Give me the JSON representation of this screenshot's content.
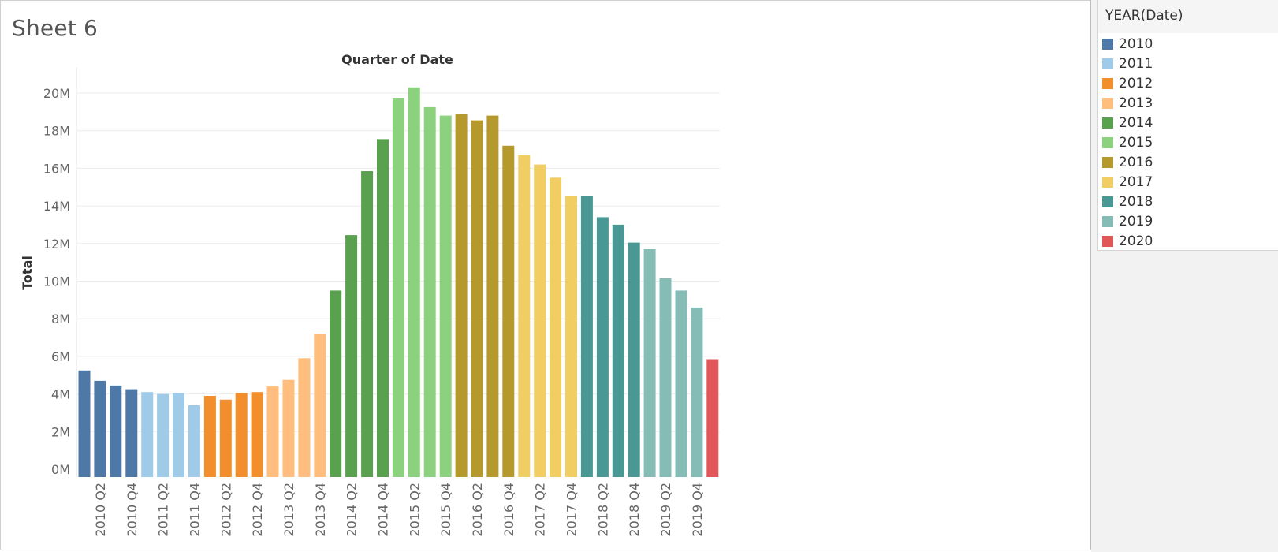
{
  "sheet": {
    "title": "Sheet 6"
  },
  "legend": {
    "title": "YEAR(Date)",
    "items": [
      {
        "label": "2010",
        "color": "#4e79a7"
      },
      {
        "label": "2011",
        "color": "#a0cbe8"
      },
      {
        "label": "2012",
        "color": "#f28e2b"
      },
      {
        "label": "2013",
        "color": "#ffbe7d"
      },
      {
        "label": "2014",
        "color": "#59a14f"
      },
      {
        "label": "2015",
        "color": "#8cd17d"
      },
      {
        "label": "2016",
        "color": "#b6992d"
      },
      {
        "label": "2017",
        "color": "#f1ce63"
      },
      {
        "label": "2018",
        "color": "#499894"
      },
      {
        "label": "2019",
        "color": "#86bcb6"
      },
      {
        "label": "2020",
        "color": "#e15759"
      }
    ]
  },
  "chart_data": {
    "type": "bar",
    "title": "Quarter of Date",
    "xlabel": "",
    "ylabel": "Total",
    "ylim": [
      0,
      20000000
    ],
    "y_ticks": [
      "0M",
      "2M",
      "4M",
      "6M",
      "8M",
      "10M",
      "12M",
      "14M",
      "16M",
      "18M",
      "20M"
    ],
    "grid": true,
    "legend_position": "right",
    "categories": [
      "2010 Q1",
      "2010 Q2",
      "2010 Q3",
      "2010 Q4",
      "2011 Q1",
      "2011 Q2",
      "2011 Q3",
      "2011 Q4",
      "2012 Q1",
      "2012 Q2",
      "2012 Q3",
      "2012 Q4",
      "2013 Q1",
      "2013 Q2",
      "2013 Q3",
      "2013 Q4",
      "2014 Q1",
      "2014 Q2",
      "2014 Q3",
      "2014 Q4",
      "2015 Q1",
      "2015 Q2",
      "2015 Q3",
      "2015 Q4",
      "2016 Q1",
      "2016 Q2",
      "2016 Q3",
      "2016 Q4",
      "2017 Q1",
      "2017 Q2",
      "2017 Q3",
      "2017 Q4",
      "2018 Q1",
      "2018 Q2",
      "2018 Q3",
      "2018 Q4",
      "2019 Q1",
      "2019 Q2",
      "2019 Q3",
      "2019 Q4",
      "2020 Q1"
    ],
    "x_tick_labels": [
      "",
      "2010 Q2",
      "",
      "2010 Q4",
      "",
      "2011 Q2",
      "",
      "2011 Q4",
      "",
      "2012 Q2",
      "",
      "2012 Q4",
      "",
      "2013 Q2",
      "",
      "2013 Q4",
      "",
      "2014 Q2",
      "",
      "2014 Q4",
      "",
      "2015 Q2",
      "",
      "2015 Q4",
      "",
      "2016 Q2",
      "",
      "2016 Q4",
      "",
      "2017 Q2",
      "",
      "2017 Q4",
      "",
      "2018 Q2",
      "",
      "2018 Q4",
      "",
      "2019 Q2",
      "",
      "2019 Q4",
      ""
    ],
    "values": [
      5250000,
      4700000,
      4450000,
      4250000,
      4100000,
      4000000,
      4050000,
      3400000,
      3900000,
      3700000,
      4050000,
      4100000,
      4400000,
      4750000,
      5900000,
      7200000,
      9500000,
      12450000,
      15850000,
      17550000,
      19750000,
      20300000,
      19250000,
      18800000,
      18900000,
      18550000,
      18800000,
      17200000,
      16700000,
      16200000,
      15500000,
      14550000,
      14550000,
      13400000,
      13000000,
      12050000,
      11700000,
      10150000,
      9500000,
      8600000,
      5850000
    ],
    "years": [
      "2010",
      "2010",
      "2010",
      "2010",
      "2011",
      "2011",
      "2011",
      "2011",
      "2012",
      "2012",
      "2012",
      "2012",
      "2013",
      "2013",
      "2013",
      "2013",
      "2014",
      "2014",
      "2014",
      "2014",
      "2015",
      "2015",
      "2015",
      "2015",
      "2016",
      "2016",
      "2016",
      "2016",
      "2017",
      "2017",
      "2017",
      "2017",
      "2018",
      "2018",
      "2018",
      "2018",
      "2019",
      "2019",
      "2019",
      "2019",
      "2020"
    ]
  }
}
